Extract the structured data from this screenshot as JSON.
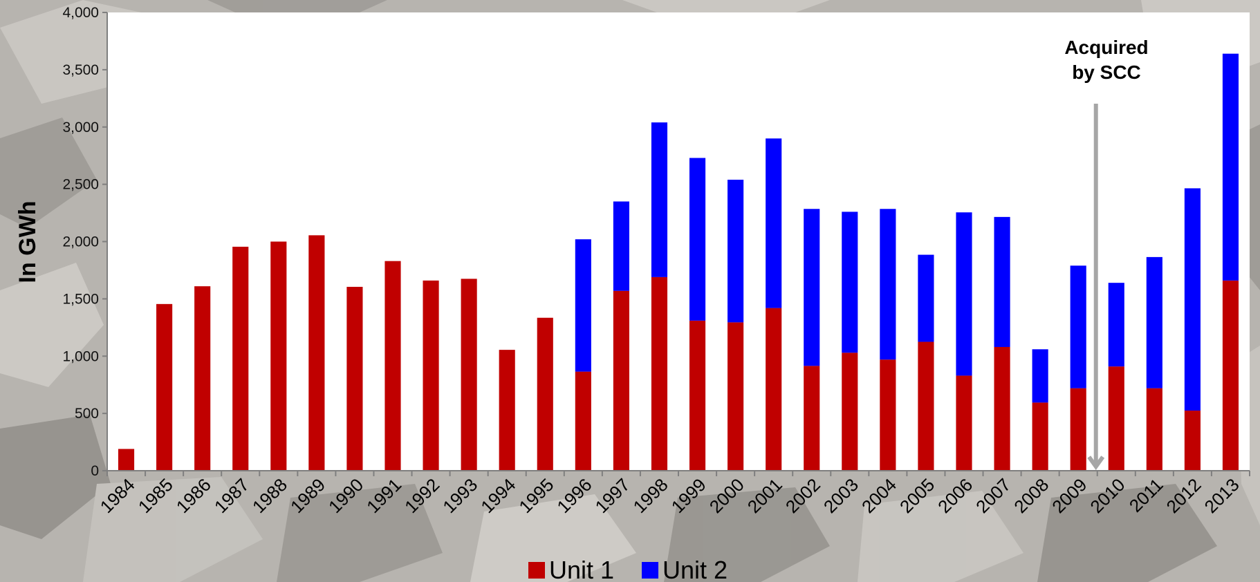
{
  "chart_data": {
    "type": "bar",
    "stacked": true,
    "ylabel": "In GWh",
    "xlabel": "",
    "ylim": [
      0,
      4000
    ],
    "yticks": [
      "0",
      "500",
      "1,000",
      "1,500",
      "2,000",
      "2,500",
      "3,000",
      "3,500",
      "4,000"
    ],
    "ytick_values": [
      0,
      500,
      1000,
      1500,
      2000,
      2500,
      3000,
      3500,
      4000
    ],
    "categories": [
      "1984",
      "1985",
      "1986",
      "1987",
      "1988",
      "1989",
      "1990",
      "1991",
      "1992",
      "1993",
      "1994",
      "1995",
      "1996",
      "1997",
      "1998",
      "1999",
      "2000",
      "2001",
      "2002",
      "2003",
      "2004",
      "2005",
      "2006",
      "2007",
      "2008",
      "2009",
      "2010",
      "2011",
      "2012",
      "2013"
    ],
    "series": [
      {
        "name": "Unit 1",
        "color": "#c00000",
        "values": [
          190,
          1455,
          1610,
          1955,
          2000,
          2055,
          1605,
          1830,
          1660,
          1675,
          1055,
          1335,
          865,
          1570,
          1690,
          1310,
          1295,
          1420,
          915,
          1030,
          970,
          1125,
          830,
          1080,
          595,
          720,
          910,
          720,
          525,
          1660
        ]
      },
      {
        "name": "Unit 2",
        "color": "#0000ff",
        "values": [
          0,
          0,
          0,
          0,
          0,
          0,
          0,
          0,
          0,
          0,
          0,
          0,
          1155,
          780,
          1350,
          1420,
          1245,
          1480,
          1370,
          1230,
          1315,
          760,
          1425,
          1135,
          465,
          1070,
          730,
          1145,
          1940,
          1980
        ]
      }
    ],
    "grid": false,
    "legend": "bottom-center",
    "annotations": [
      {
        "text_lines": [
          "Acquired",
          "by SCC"
        ],
        "arrow_to_category": "2010"
      }
    ]
  }
}
